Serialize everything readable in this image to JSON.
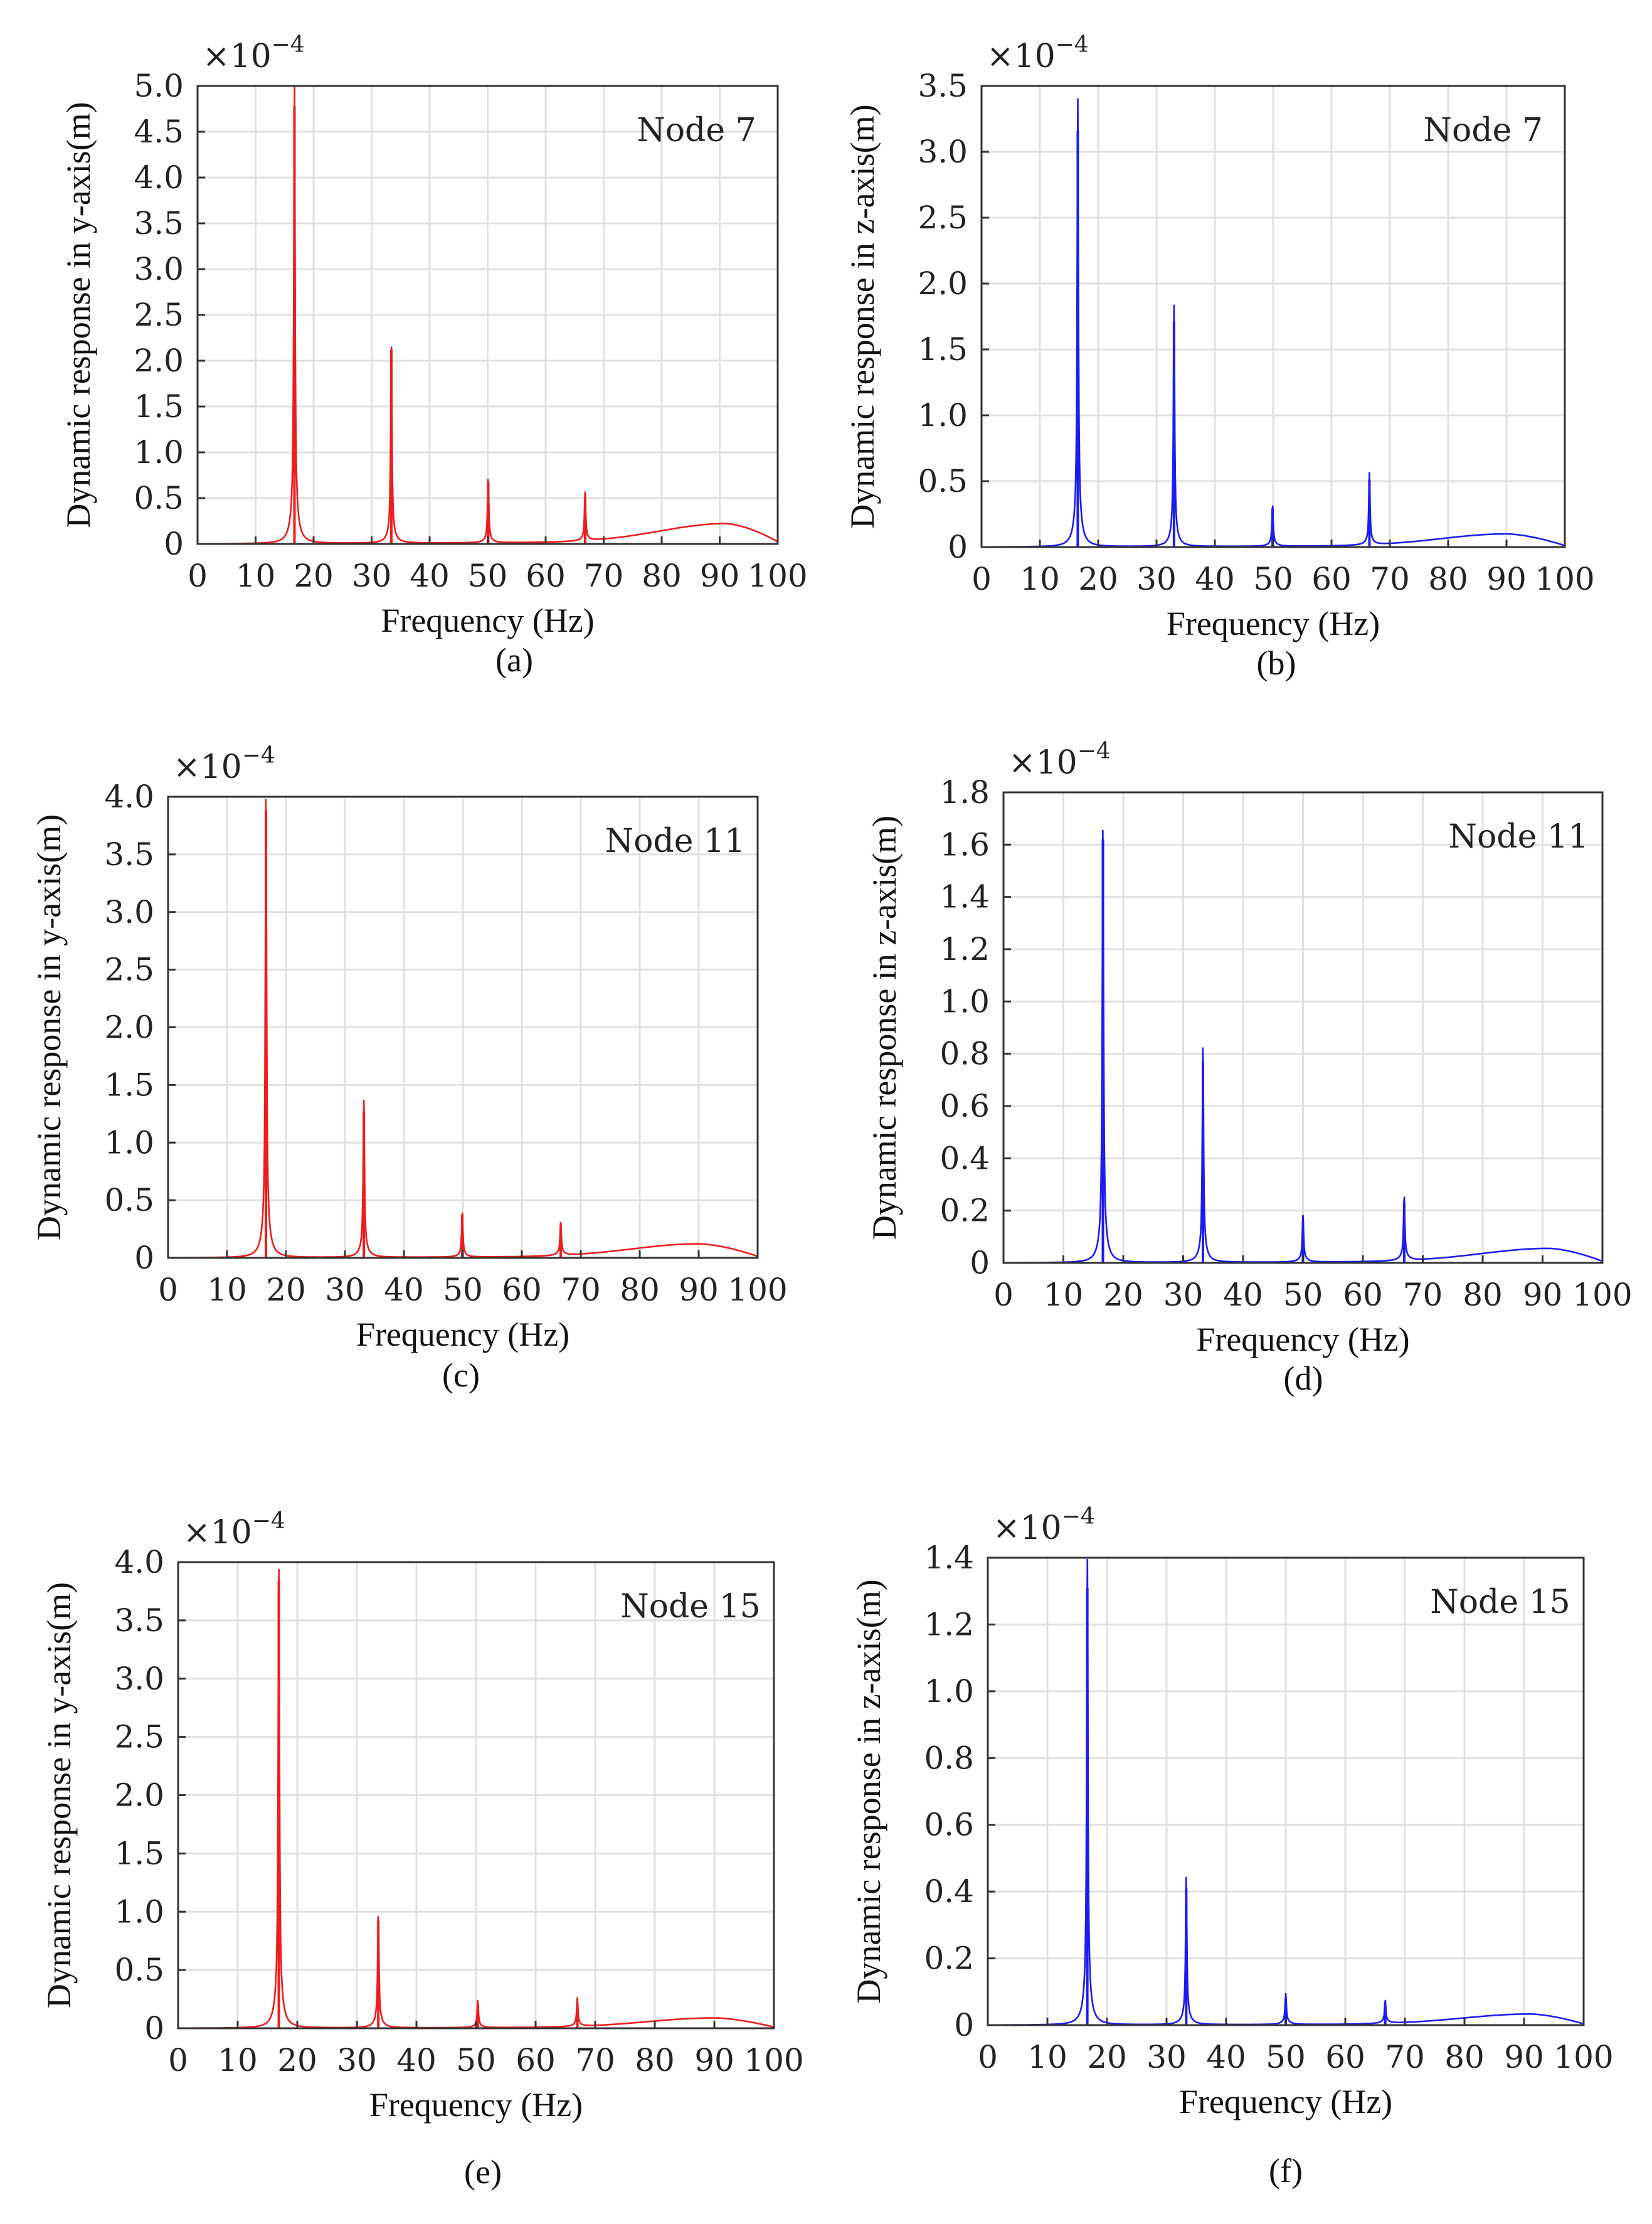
{
  "figure": {
    "colors": {
      "red": "#ee1c1c",
      "blue": "#1c1cee",
      "grid": "#e0e0e0",
      "axis": "#333333"
    }
  },
  "chart_data": [
    {
      "type": "line",
      "panel": "a",
      "caption": "(a)",
      "annotation": "Node  7",
      "multiplier": "×10",
      "multiplier_exp": "−4",
      "xlabel": "Frequency (Hz)",
      "ylabel": "Dynamic response in y-axis(m)",
      "xlim": [
        0,
        100
      ],
      "ylim": [
        0,
        5.0
      ],
      "xticks": [
        0,
        10,
        20,
        30,
        40,
        50,
        60,
        70,
        80,
        90,
        100
      ],
      "xtick_labels": [
        "0",
        "10",
        "20",
        "30",
        "40",
        "50",
        "60",
        "70",
        "80",
        "90",
        "100"
      ],
      "yticks": [
        0,
        0.5,
        1.0,
        1.5,
        2.0,
        2.5,
        3.0,
        3.5,
        4.0,
        4.5,
        5.0
      ],
      "ytick_labels": [
        "0",
        "0.5",
        "1.0",
        "1.5",
        "2.0",
        "2.5",
        "3.0",
        "3.5",
        "4.0",
        "4.5",
        "5.0"
      ],
      "grid": true,
      "color": "red",
      "peaks": [
        {
          "f": 16.7,
          "v": 4.78,
          "shoulder": 0.6
        },
        {
          "f": 33.4,
          "v": 2.12,
          "shoulder": 0.22
        },
        {
          "f": 50.1,
          "v": 0.68,
          "shoulder": 0.08
        },
        {
          "f": 66.8,
          "v": 0.5,
          "shoulder": 0.06
        }
      ],
      "baseline": {
        "bump_f": 91,
        "bump_v": 0.2
      }
    },
    {
      "type": "line",
      "panel": "b",
      "caption": "(b)",
      "annotation": "Node  7",
      "multiplier": "×10",
      "multiplier_exp": "−4",
      "xlabel": "Frequency (Hz)",
      "ylabel": "Dynamic response in z-axis(m)",
      "xlim": [
        0,
        100
      ],
      "ylim": [
        0,
        3.5
      ],
      "xticks": [
        0,
        10,
        20,
        30,
        40,
        50,
        60,
        70,
        80,
        90,
        100
      ],
      "xtick_labels": [
        "0",
        "10",
        "20",
        "30",
        "40",
        "50",
        "60",
        "70",
        "80",
        "90",
        "100"
      ],
      "yticks": [
        0,
        0.5,
        1.0,
        1.5,
        2.0,
        2.5,
        3.0,
        3.5
      ],
      "ytick_labels": [
        "0",
        "0.5",
        "1.0",
        "1.5",
        "2.0",
        "2.5",
        "3.0",
        "3.5"
      ],
      "grid": true,
      "color": "blue",
      "peaks": [
        {
          "f": 16.5,
          "v": 3.16,
          "shoulder": 0.4
        },
        {
          "f": 33.0,
          "v": 1.71,
          "shoulder": 0.2
        },
        {
          "f": 49.9,
          "v": 0.29,
          "shoulder": 0.05
        },
        {
          "f": 66.5,
          "v": 0.51,
          "shoulder": 0.06
        }
      ],
      "baseline": {
        "bump_f": 90,
        "bump_v": 0.09
      }
    },
    {
      "type": "line",
      "panel": "c",
      "caption": "(c)",
      "annotation": "Node  11",
      "multiplier": "×10",
      "multiplier_exp": "−4",
      "xlabel": "Frequency (Hz)",
      "ylabel": "Dynamic response in y-axis(m)",
      "xlim": [
        0,
        100
      ],
      "ylim": [
        0,
        4.0
      ],
      "xticks": [
        0,
        10,
        20,
        30,
        40,
        50,
        60,
        70,
        80,
        90,
        100
      ],
      "xtick_labels": [
        "0",
        "10",
        "20",
        "30",
        "40",
        "50",
        "60",
        "70",
        "80",
        "90",
        "100"
      ],
      "yticks": [
        0,
        0.5,
        1.0,
        1.5,
        2.0,
        2.5,
        3.0,
        3.5,
        4.0
      ],
      "ytick_labels": [
        "0",
        "0.5",
        "1.0",
        "1.5",
        "2.0",
        "2.5",
        "3.0",
        "3.5",
        "4.0"
      ],
      "grid": true,
      "color": "red",
      "peaks": [
        {
          "f": 16.6,
          "v": 3.88,
          "shoulder": 0.5
        },
        {
          "f": 33.2,
          "v": 1.27,
          "shoulder": 0.18
        },
        {
          "f": 49.9,
          "v": 0.37,
          "shoulder": 0.05
        },
        {
          "f": 66.6,
          "v": 0.27,
          "shoulder": 0.05
        }
      ],
      "baseline": {
        "bump_f": 90,
        "bump_v": 0.11
      }
    },
    {
      "type": "line",
      "panel": "d",
      "caption": "(d)",
      "annotation": "Node  11",
      "multiplier": "×10",
      "multiplier_exp": "−4",
      "xlabel": "Frequency (Hz)",
      "ylabel": "Dynamic response in z-axis(m)",
      "xlim": [
        0,
        100
      ],
      "ylim": [
        0,
        1.8
      ],
      "xticks": [
        0,
        10,
        20,
        30,
        40,
        50,
        60,
        70,
        80,
        90,
        100
      ],
      "xtick_labels": [
        "0",
        "10",
        "20",
        "30",
        "40",
        "50",
        "60",
        "70",
        "80",
        "90",
        "100"
      ],
      "yticks": [
        0,
        0.2,
        0.4,
        0.6,
        0.8,
        1.0,
        1.2,
        1.4,
        1.6,
        1.8
      ],
      "ytick_labels": [
        "0",
        "0.2",
        "0.4",
        "0.6",
        "0.8",
        "1.0",
        "1.2",
        "1.4",
        "1.6",
        "1.8"
      ],
      "grid": true,
      "color": "blue",
      "peaks": [
        {
          "f": 16.6,
          "v": 1.62,
          "shoulder": 0.2
        },
        {
          "f": 33.3,
          "v": 0.77,
          "shoulder": 0.1
        },
        {
          "f": 50.0,
          "v": 0.16,
          "shoulder": 0.03
        },
        {
          "f": 66.9,
          "v": 0.23,
          "shoulder": 0.04
        }
      ],
      "baseline": {
        "bump_f": 91,
        "bump_v": 0.05
      }
    },
    {
      "type": "line",
      "panel": "e",
      "caption": "(e)",
      "annotation": "Node  15",
      "multiplier": "×10",
      "multiplier_exp": "−4",
      "xlabel": "Frequency (Hz)",
      "ylabel": "Dynamic response in y-axis(m)",
      "xlim": [
        0,
        100
      ],
      "ylim": [
        0,
        4.0
      ],
      "xticks": [
        0,
        10,
        20,
        30,
        40,
        50,
        60,
        70,
        80,
        90,
        100
      ],
      "xtick_labels": [
        "0",
        "10",
        "20",
        "30",
        "40",
        "50",
        "60",
        "70",
        "80",
        "90",
        "100"
      ],
      "yticks": [
        0,
        0.5,
        1.0,
        1.5,
        2.0,
        2.5,
        3.0,
        3.5,
        4.0
      ],
      "ytick_labels": [
        "0",
        "0.5",
        "1.0",
        "1.5",
        "2.0",
        "2.5",
        "3.0",
        "3.5",
        "4.0"
      ],
      "grid": true,
      "color": "red",
      "peaks": [
        {
          "f": 16.9,
          "v": 3.84,
          "shoulder": 0.5
        },
        {
          "f": 33.6,
          "v": 0.92,
          "shoulder": 0.14
        },
        {
          "f": 50.3,
          "v": 0.21,
          "shoulder": 0.04
        },
        {
          "f": 67.0,
          "v": 0.22,
          "shoulder": 0.04
        }
      ],
      "baseline": {
        "bump_f": 90,
        "bump_v": 0.08
      }
    },
    {
      "type": "line",
      "panel": "f",
      "caption": "(f)",
      "annotation": "Node  15",
      "multiplier": "×10",
      "multiplier_exp": "−4",
      "xlabel": "Frequency (Hz)",
      "ylabel": "Dynamic response in z-axis(m)",
      "xlim": [
        0,
        100
      ],
      "ylim": [
        0,
        1.4
      ],
      "xticks": [
        0,
        10,
        20,
        30,
        40,
        50,
        60,
        70,
        80,
        90,
        100
      ],
      "xtick_labels": [
        "0",
        "10",
        "20",
        "30",
        "40",
        "50",
        "60",
        "70",
        "80",
        "90",
        "100"
      ],
      "yticks": [
        0,
        0.2,
        0.4,
        0.6,
        0.8,
        1.0,
        1.2,
        1.4
      ],
      "ytick_labels": [
        "0",
        "0.2",
        "0.4",
        "0.6",
        "0.8",
        "1.0",
        "1.2",
        "1.4"
      ],
      "grid": true,
      "color": "blue",
      "peaks": [
        {
          "f": 16.7,
          "v": 1.31,
          "shoulder": 0.17
        },
        {
          "f": 33.3,
          "v": 0.41,
          "shoulder": 0.06
        },
        {
          "f": 50.0,
          "v": 0.08,
          "shoulder": 0.02
        },
        {
          "f": 66.7,
          "v": 0.06,
          "shoulder": 0.015
        }
      ],
      "baseline": {
        "bump_f": 91,
        "bump_v": 0.03
      }
    }
  ]
}
